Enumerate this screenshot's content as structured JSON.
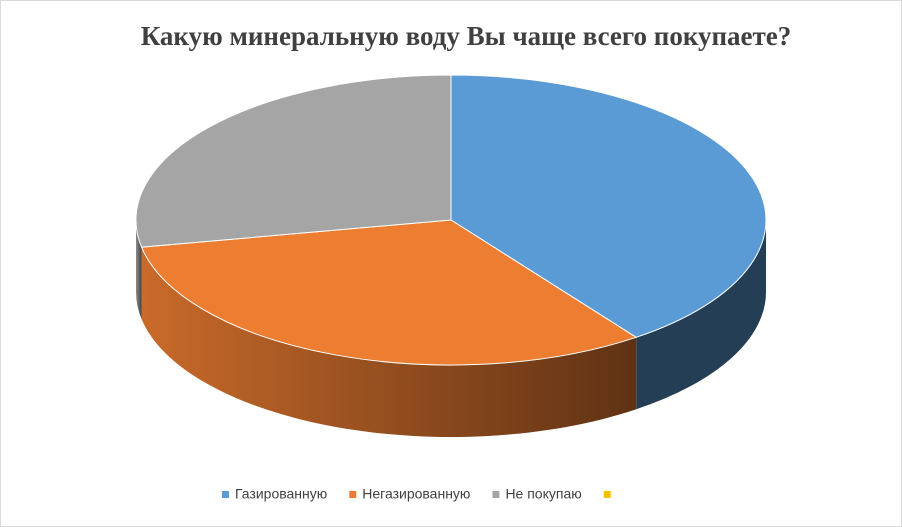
{
  "chart_data": {
    "type": "pie3d",
    "title": "Какую минеральную воду Вы чаще всего покупаете?",
    "categories": [
      "Газированную",
      "Негазированную",
      "Не покупаю",
      null
    ],
    "values": [
      40,
      32,
      28,
      0
    ],
    "colors": [
      "#5b9bd5",
      "#ed7d31",
      "#a5a5a5",
      "#ffc000"
    ],
    "legend": "bottom"
  }
}
